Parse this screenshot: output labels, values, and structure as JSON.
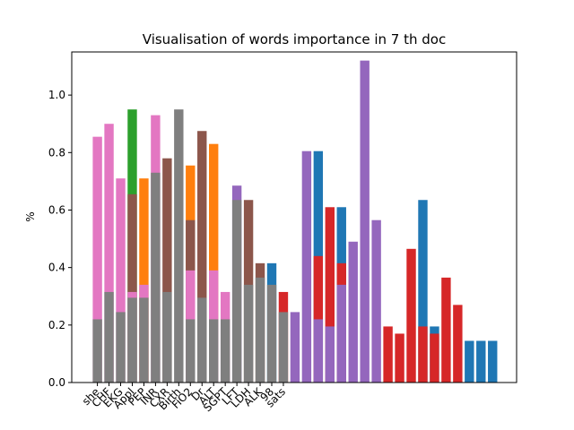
{
  "chart_data": {
    "type": "bar",
    "title": "Visualisation of words importance in 7 th doc",
    "xlabel": "",
    "ylabel": "%",
    "ylim": [
      0.0,
      1.15
    ],
    "yticks": [
      "0.0",
      "0.2",
      "0.4",
      "0.6",
      "0.8",
      "1.0"
    ],
    "xtick_labels": [
      "she",
      "CHF",
      "EKG",
      "Appl",
      "PEP",
      "INR",
      "CXR",
      "Birth",
      "FiO2",
      "Dr",
      "ALT",
      "SGPT",
      "LFT",
      "LDH",
      "ALK",
      "98",
      "sats"
    ],
    "colors": {
      "gray": "#7f7f7f",
      "pink": "#e377c2",
      "green": "#2ca02c",
      "orange": "#ff7f0e",
      "brown": "#8c564b",
      "purple": "#9467bd",
      "blue": "#1f77b4",
      "red": "#d62728"
    },
    "bars": [
      {
        "segments": [
          [
            "gray",
            0.22
          ],
          [
            "pink",
            0.855
          ]
        ]
      },
      {
        "segments": [
          [
            "gray",
            0.315
          ],
          [
            "pink",
            0.9
          ]
        ]
      },
      {
        "segments": [
          [
            "gray",
            0.245
          ],
          [
            "pink",
            0.71
          ]
        ]
      },
      {
        "segments": [
          [
            "gray",
            0.295
          ],
          [
            "pink",
            0.315
          ],
          [
            "brown",
            0.655
          ],
          [
            "green",
            0.95
          ]
        ]
      },
      {
        "segments": [
          [
            "gray",
            0.295
          ],
          [
            "pink",
            0.34
          ],
          [
            "orange",
            0.71
          ]
        ]
      },
      {
        "segments": [
          [
            "gray",
            0.73
          ],
          [
            "pink",
            0.93
          ]
        ]
      },
      {
        "segments": [
          [
            "gray",
            0.315
          ],
          [
            "brown",
            0.78
          ]
        ]
      },
      {
        "segments": [
          [
            "gray",
            0.95
          ]
        ]
      },
      {
        "segments": [
          [
            "gray",
            0.22
          ],
          [
            "pink",
            0.39
          ],
          [
            "brown",
            0.565
          ],
          [
            "orange",
            0.755
          ]
        ]
      },
      {
        "segments": [
          [
            "gray",
            0.295
          ],
          [
            "brown",
            0.875
          ]
        ]
      },
      {
        "segments": [
          [
            "gray",
            0.22
          ],
          [
            "pink",
            0.39
          ],
          [
            "orange",
            0.83
          ]
        ]
      },
      {
        "segments": [
          [
            "gray",
            0.22
          ],
          [
            "pink",
            0.315
          ]
        ]
      },
      {
        "segments": [
          [
            "gray",
            0.635
          ],
          [
            "purple",
            0.685
          ]
        ]
      },
      {
        "segments": [
          [
            "gray",
            0.34
          ],
          [
            "brown",
            0.635
          ]
        ]
      },
      {
        "segments": [
          [
            "gray",
            0.365
          ],
          [
            "brown",
            0.415
          ]
        ]
      },
      {
        "segments": [
          [
            "gray",
            0.34
          ],
          [
            "blue",
            0.415
          ]
        ]
      },
      {
        "segments": [
          [
            "gray",
            0.245
          ],
          [
            "red",
            0.315
          ]
        ]
      },
      {
        "segments": [
          [
            "purple",
            0.245
          ]
        ]
      },
      {
        "segments": [
          [
            "purple",
            0.805
          ]
        ]
      },
      {
        "segments": [
          [
            "purple",
            0.22
          ],
          [
            "red",
            0.44
          ],
          [
            "blue",
            0.805
          ]
        ]
      },
      {
        "segments": [
          [
            "purple",
            0.195
          ],
          [
            "red",
            0.61
          ]
        ]
      },
      {
        "segments": [
          [
            "purple",
            0.34
          ],
          [
            "red",
            0.415
          ],
          [
            "blue",
            0.61
          ]
        ]
      },
      {
        "segments": [
          [
            "purple",
            0.49
          ]
        ]
      },
      {
        "segments": [
          [
            "purple",
            1.12
          ]
        ]
      },
      {
        "segments": [
          [
            "purple",
            0.565
          ]
        ]
      },
      {
        "segments": [
          [
            "red",
            0.195
          ]
        ]
      },
      {
        "segments": [
          [
            "red",
            0.17
          ]
        ]
      },
      {
        "segments": [
          [
            "red",
            0.465
          ]
        ]
      },
      {
        "segments": [
          [
            "red",
            0.195
          ],
          [
            "blue",
            0.635
          ]
        ]
      },
      {
        "segments": [
          [
            "red",
            0.17
          ],
          [
            "blue",
            0.195
          ]
        ]
      },
      {
        "segments": [
          [
            "red",
            0.365
          ]
        ]
      },
      {
        "segments": [
          [
            "red",
            0.27
          ]
        ]
      },
      {
        "segments": [
          [
            "blue",
            0.145
          ]
        ]
      },
      {
        "segments": [
          [
            "blue",
            0.145
          ]
        ]
      },
      {
        "segments": [
          [
            "blue",
            0.145
          ]
        ]
      }
    ]
  }
}
